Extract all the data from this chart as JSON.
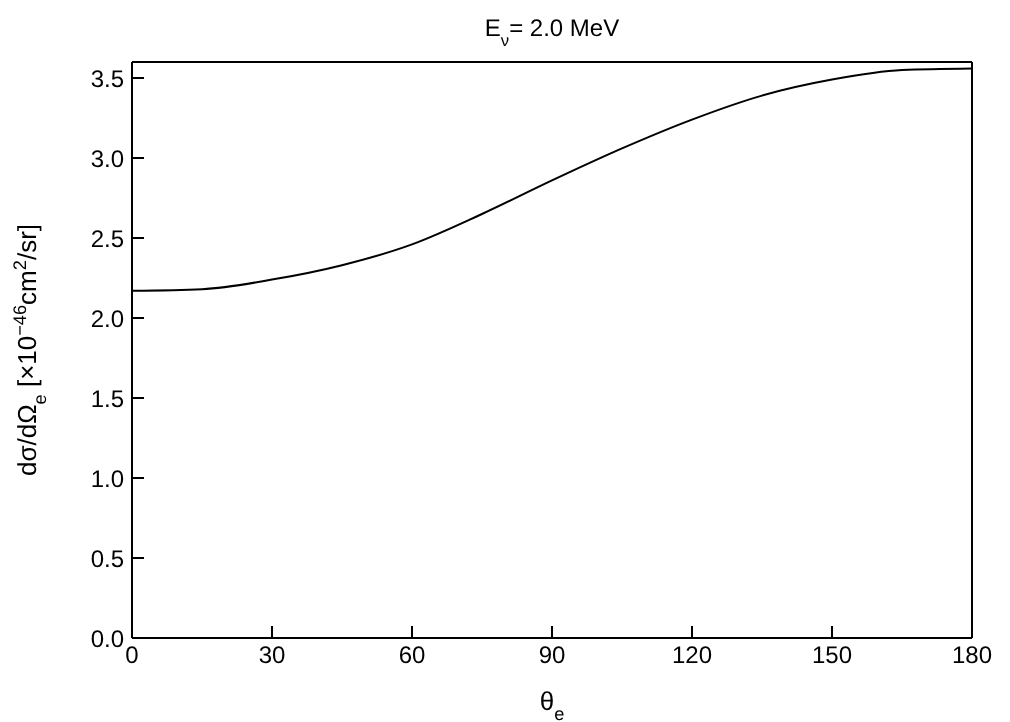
{
  "chart_data": {
    "type": "line",
    "title": "E$_{ν}$= 2.0 MeV",
    "xlabel": "θ$_{e}$",
    "ylabel": "dσ/dΩ$_{e}$ [×10$^{−46}$cm$^{2}$/sr]",
    "x": [
      0,
      15,
      30,
      45,
      60,
      75,
      90,
      105,
      120,
      135,
      150,
      165,
      180
    ],
    "series": [
      {
        "color": "#000000",
        "values": [
          2.17,
          2.18,
          2.24,
          2.33,
          2.46,
          2.65,
          2.86,
          3.06,
          3.24,
          3.39,
          3.49,
          3.55,
          3.56
        ]
      }
    ],
    "xlim": [
      0,
      180
    ],
    "xticks": [
      0,
      30,
      60,
      90,
      120,
      150,
      180
    ],
    "ylim": [
      0,
      3.6
    ],
    "yticks": [
      {
        "value": 0,
        "label": "0.0"
      },
      0.5,
      {
        "value": 1,
        "label": "1.0"
      },
      1.5,
      {
        "value": 2,
        "label": "2.0"
      },
      2.5,
      {
        "value": 3,
        "label": "3.0"
      },
      3.5
    ],
    "grid": false,
    "legend": false,
    "marker": "none",
    "line_style": "solid"
  }
}
